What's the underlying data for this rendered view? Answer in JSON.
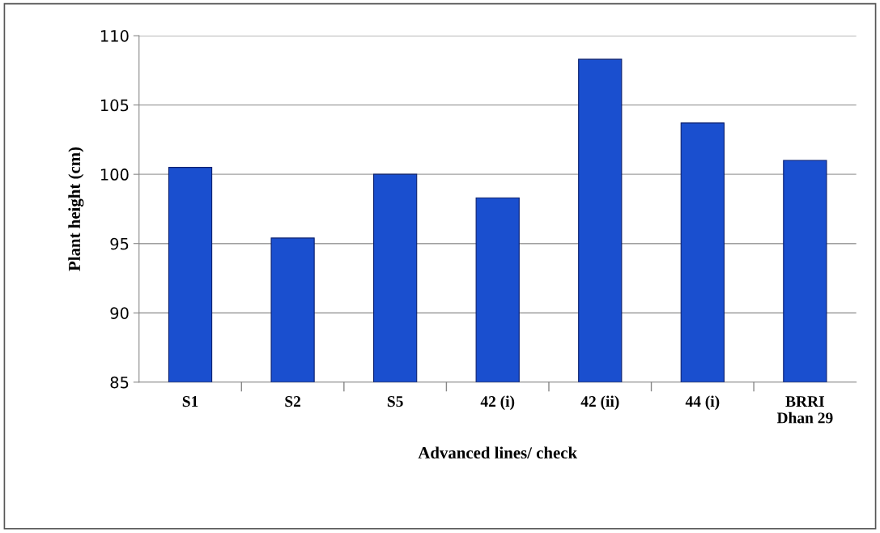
{
  "chart_data": {
    "type": "bar",
    "xlabel": "Advanced lines/ check",
    "ylabel": "Plant height (cm)",
    "categories": [
      "S1",
      "S2",
      "S5",
      "42 (i)",
      "42 (ii)",
      "44 (i)",
      "BRRI\nDhan 29"
    ],
    "values": [
      100.5,
      95.4,
      100.0,
      98.3,
      108.3,
      103.7,
      101.0
    ],
    "color": "#1a4fcf",
    "ylim": [
      85,
      110
    ],
    "yticks": [
      85,
      90,
      95,
      100,
      105,
      110
    ],
    "grid": "y",
    "legend": false
  }
}
